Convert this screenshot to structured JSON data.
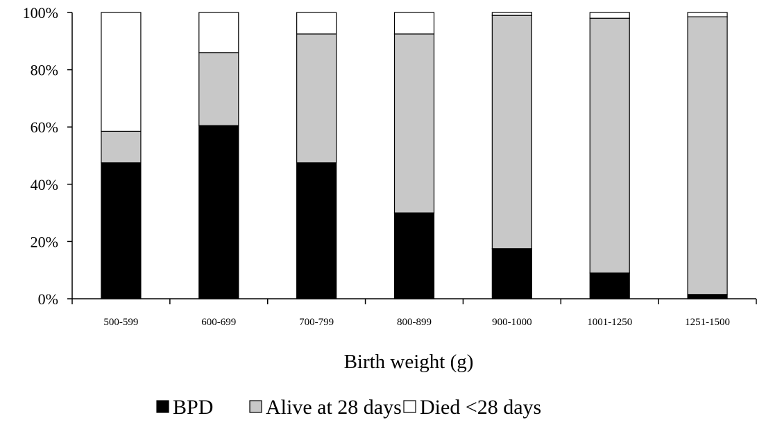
{
  "chart_data": {
    "type": "bar",
    "stacked": true,
    "xlabel": "Birth weight (g)",
    "ylabel": "",
    "ylim": [
      0,
      100
    ],
    "yticks": [
      "0%",
      "20%",
      "40%",
      "60%",
      "80%",
      "100%"
    ],
    "categories": [
      "500-599",
      "600-699",
      "700-799",
      "800-899",
      "900-1000",
      "1001-1250",
      "1251-1500"
    ],
    "series": [
      {
        "name": "BPD",
        "color": "#000000",
        "values": [
          47.5,
          60.5,
          47.5,
          30,
          17.5,
          9,
          1.5
        ]
      },
      {
        "name": "Alive at 28 days",
        "color": "#c8c8c8",
        "values": [
          11,
          25.5,
          45,
          62.5,
          81.5,
          89,
          97
        ]
      },
      {
        "name": "Died <28 days",
        "color": "#ffffff",
        "values": [
          41.5,
          14,
          7.5,
          7.5,
          1,
          2,
          1.5
        ]
      }
    ],
    "legend": {
      "position": "bottom",
      "items": [
        {
          "label": "BPD",
          "swatch": "#000000"
        },
        {
          "label": "Alive at 28 days",
          "swatch": "#c8c8c8"
        },
        {
          "label": "Died  <28 days",
          "swatch": "#ffffff"
        }
      ]
    },
    "grid": false
  }
}
